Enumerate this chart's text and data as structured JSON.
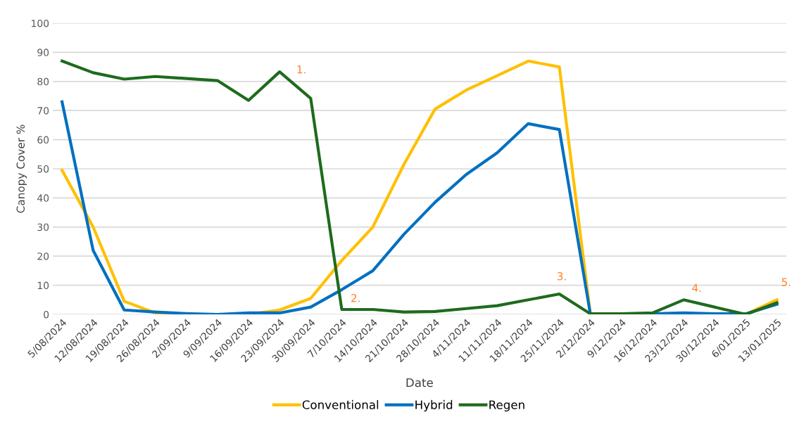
{
  "chart_data": {
    "type": "line",
    "xlabel": "Date",
    "ylabel": "Canopy Cover %",
    "categories": [
      "5/08/2024",
      "12/08/2024",
      "19/08/2024",
      "26/08/2024",
      "2/09/2024",
      "9/09/2024",
      "16/09/2024",
      "23/09/2024",
      "30/09/2024",
      "7/10/2024",
      "14/10/2024",
      "21/10/2024",
      "28/10/2024",
      "4/11/2024",
      "11/11/2024",
      "18/11/2024",
      "25/11/2024",
      "2/12/2024",
      "9/12/2024",
      "16/12/2024",
      "23/12/2024",
      "30/12/2024",
      "6/01/2025",
      "13/01/2025"
    ],
    "series": [
      {
        "name": "Conventional",
        "color": "#ffc000",
        "values": [
          49.5,
          30,
          4.5,
          0.5,
          0,
          0,
          0,
          1.5,
          5.5,
          18.5,
          30,
          51.5,
          70.5,
          77,
          82,
          87,
          85,
          0,
          0,
          0,
          0,
          0,
          0,
          5
        ]
      },
      {
        "name": "Hybrid",
        "color": "#0070c0",
        "values": [
          73,
          22,
          1.5,
          0.8,
          0.3,
          0,
          0.5,
          0.5,
          2.5,
          8.5,
          15,
          27.5,
          38.5,
          48,
          55.5,
          65.5,
          63.5,
          0,
          0,
          0.2,
          0.5,
          0.2,
          0.2,
          3.5
        ]
      },
      {
        "name": "Regen",
        "color": "#1e6b1e",
        "values": [
          87,
          83,
          80.8,
          81.7,
          81,
          80.3,
          73.5,
          83.3,
          74.2,
          1.7,
          1.7,
          0.8,
          1,
          2,
          3,
          5,
          7,
          0.2,
          0.2,
          0.5,
          5,
          2.5,
          0,
          4
        ]
      }
    ],
    "ylim": [
      0,
      100
    ],
    "yticks": [
      0,
      10,
      20,
      30,
      40,
      50,
      60,
      70,
      80,
      90,
      100
    ],
    "grid": "y",
    "legend": "bottom",
    "marker": "none",
    "line_style": "solid",
    "annotations": [
      "1.",
      "2.",
      "3.",
      "4.",
      "5."
    ]
  }
}
